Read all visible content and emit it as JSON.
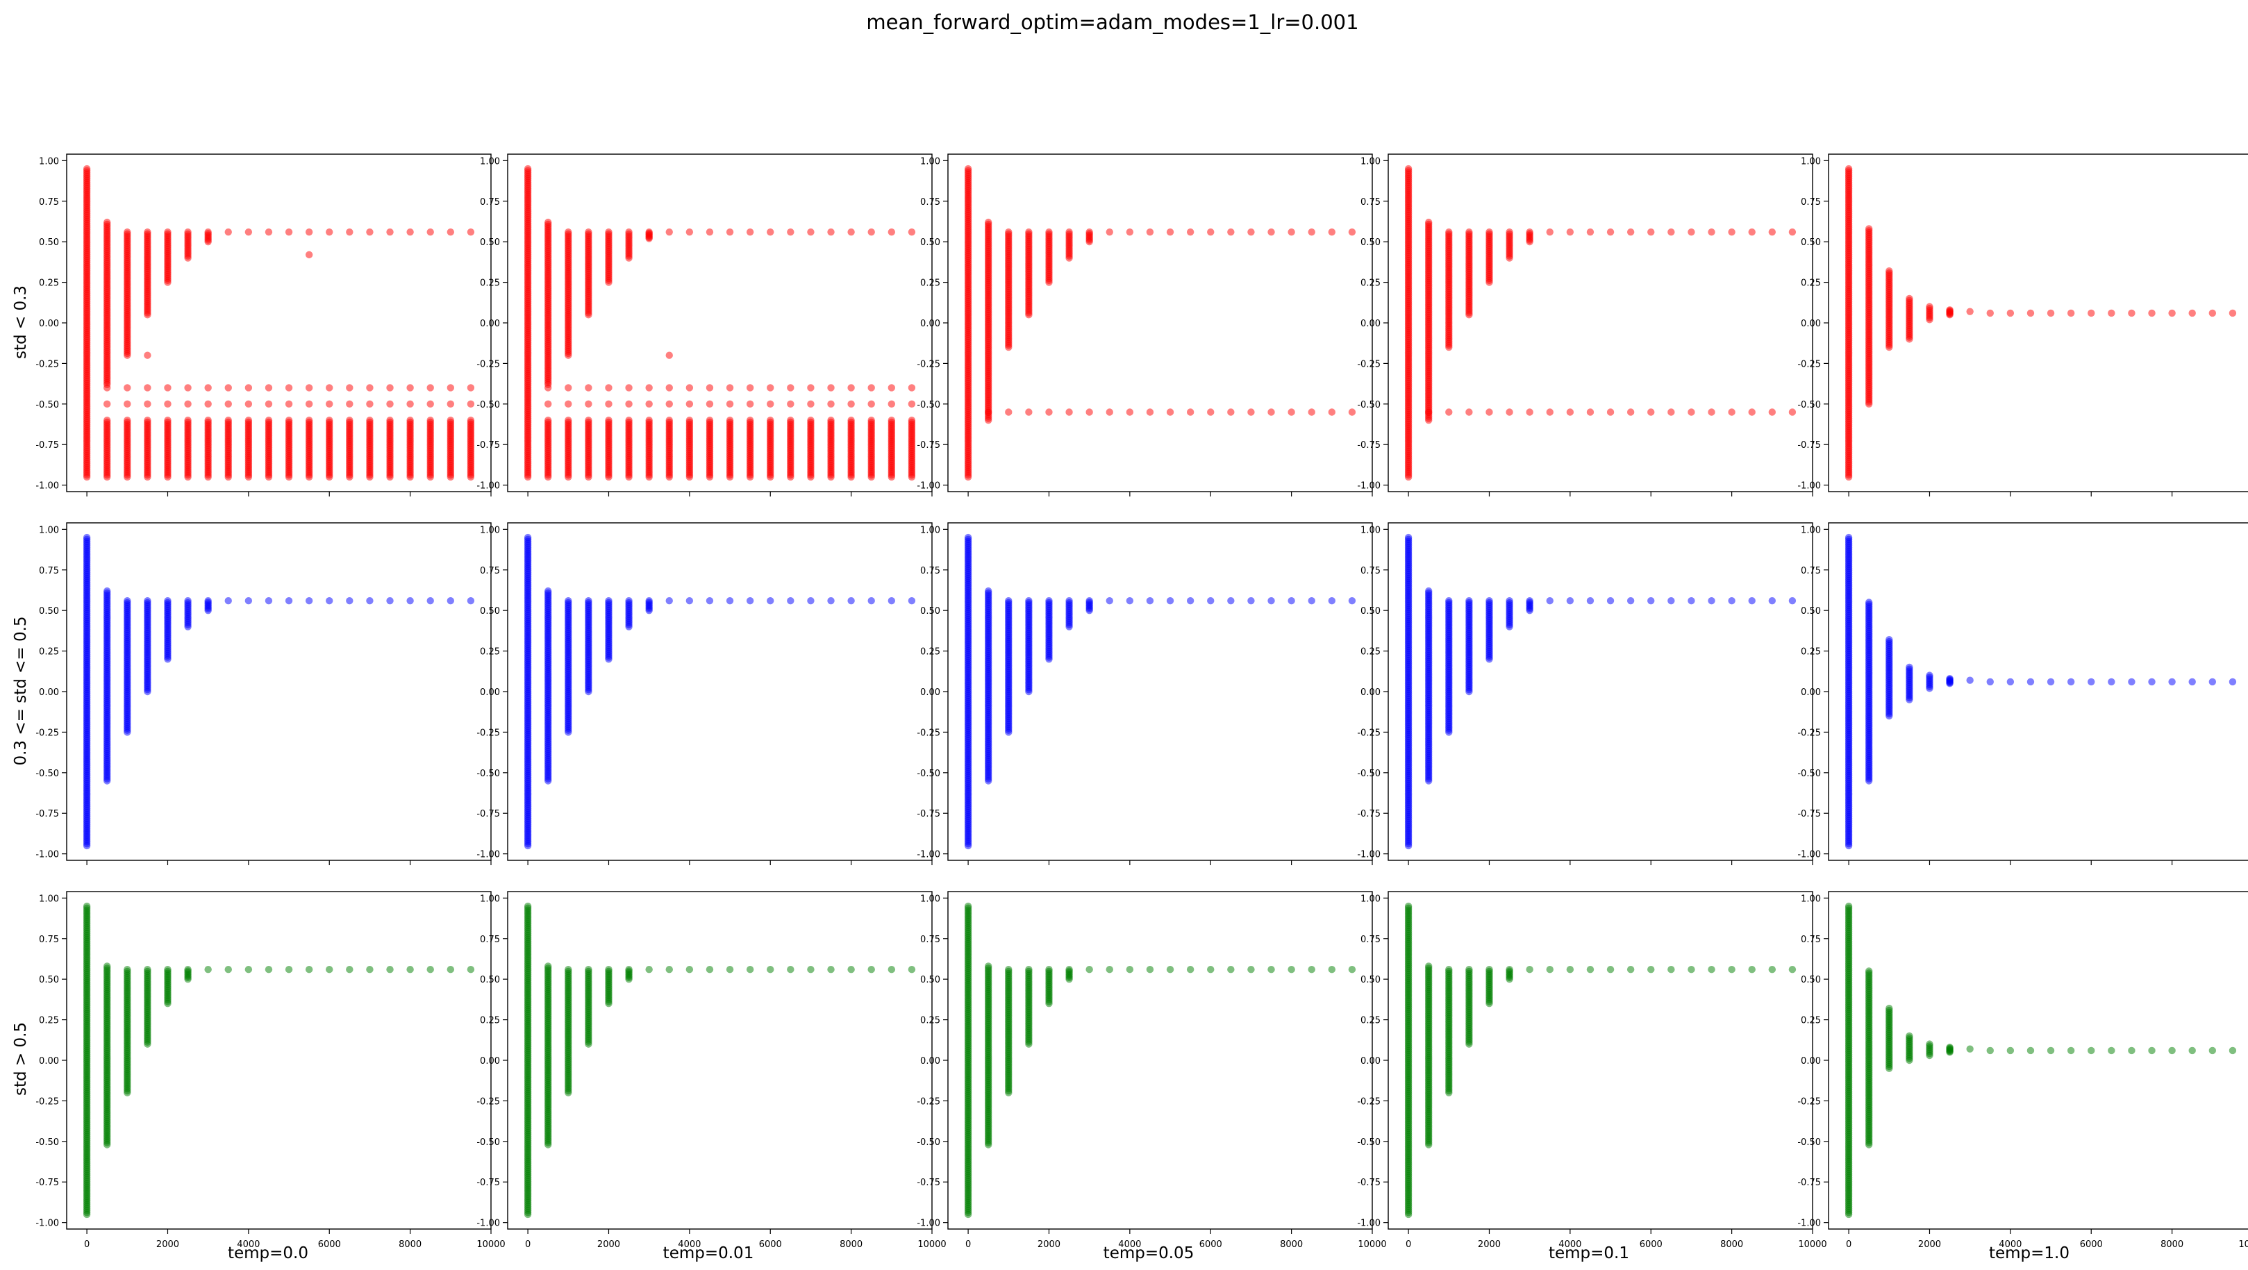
{
  "figure": {
    "title": "mean_forward_optim=adam_modes=1_lr=0.001",
    "row_labels": [
      "std < 0.3",
      "0.3 <= std <= 0.5",
      "std > 0.5"
    ],
    "col_labels": [
      "temp=0.0",
      "temp=0.01",
      "temp=0.05",
      "temp=0.1",
      "temp=1.0"
    ],
    "row_colors": [
      "#ff0000",
      "#0000ff",
      "#008000"
    ],
    "point_alpha": 0.5
  },
  "chart_data": {
    "type": "scatter",
    "layout": "grid 3 rows x 5 columns, shared x axis",
    "xlim": [
      -500,
      10000
    ],
    "ylim": [
      -1.04,
      1.04
    ],
    "x_ticks": [
      0,
      2000,
      4000,
      6000,
      8000,
      10000
    ],
    "x_tick_labels": [
      "0",
      "2000",
      "4000",
      "6000",
      "8000",
      "10000"
    ],
    "y_ticks": [
      1.0,
      0.75,
      0.5,
      0.25,
      0.0,
      -0.25,
      -0.5,
      -0.75,
      -1.0
    ],
    "y_tick_labels": [
      "1.00",
      "0.75",
      "0.50",
      "0.25",
      "0.00",
      "-0.25",
      "-0.50",
      "-0.75",
      "-1.00"
    ],
    "grid": false,
    "legend": "none",
    "x_steps": [
      0,
      500,
      1000,
      1500,
      2000,
      2500,
      3000,
      3500,
      4000,
      4500,
      5000,
      5500,
      6000,
      6500,
      7000,
      7500,
      8000,
      8500,
      9000,
      9500
    ],
    "panels": [
      {
        "row": 0,
        "col": 0,
        "upper": [
          [
            -0.95,
            0.95
          ],
          [
            -0.38,
            0.62
          ],
          [
            -0.2,
            0.56
          ],
          [
            0.05,
            0.56
          ],
          [
            0.25,
            0.56
          ],
          [
            0.4,
            0.56
          ],
          [
            0.5,
            0.56
          ],
          [
            0.55,
            0.56
          ]
        ],
        "lower_start": 1,
        "lower": [
          -0.95,
          -0.4
        ],
        "lower_mid": -0.6,
        "extra": [
          [
            1500,
            -0.2
          ],
          [
            5500,
            0.42
          ]
        ]
      },
      {
        "row": 0,
        "col": 1,
        "upper": [
          [
            -0.95,
            0.95
          ],
          [
            -0.38,
            0.62
          ],
          [
            -0.2,
            0.56
          ],
          [
            0.05,
            0.56
          ],
          [
            0.25,
            0.56
          ],
          [
            0.4,
            0.56
          ],
          [
            0.52,
            0.56
          ],
          [
            0.55,
            0.56
          ]
        ],
        "lower_start": 1,
        "lower": [
          -0.95,
          -0.4
        ],
        "lower_mid": -0.6,
        "extra": [
          [
            3500,
            -0.2
          ]
        ]
      },
      {
        "row": 0,
        "col": 2,
        "upper": [
          [
            -0.95,
            0.95
          ],
          [
            -0.6,
            0.62
          ],
          [
            -0.15,
            0.56
          ],
          [
            0.05,
            0.56
          ],
          [
            0.25,
            0.56
          ],
          [
            0.4,
            0.56
          ],
          [
            0.5,
            0.56
          ],
          [
            0.55,
            0.56
          ]
        ],
        "lower_start": 1,
        "lower": [
          -0.55,
          -0.55
        ],
        "lower_mid": -0.55
      },
      {
        "row": 0,
        "col": 3,
        "upper": [
          [
            -0.95,
            0.95
          ],
          [
            -0.6,
            0.62
          ],
          [
            -0.15,
            0.56
          ],
          [
            0.05,
            0.56
          ],
          [
            0.25,
            0.56
          ],
          [
            0.4,
            0.56
          ],
          [
            0.5,
            0.56
          ],
          [
            0.55,
            0.56
          ]
        ],
        "lower_start": 1,
        "lower": [
          -0.55,
          -0.55
        ],
        "lower_mid": -0.55
      },
      {
        "row": 0,
        "col": 4,
        "upper": [
          [
            -0.95,
            0.95
          ],
          [
            -0.5,
            0.58
          ],
          [
            -0.15,
            0.32
          ],
          [
            -0.1,
            0.15
          ],
          [
            0.02,
            0.1
          ],
          [
            0.05,
            0.08
          ],
          [
            0.06,
            0.07
          ],
          [
            0.06,
            0.06
          ]
        ]
      },
      {
        "row": 1,
        "col": 0,
        "upper": [
          [
            -0.95,
            0.95
          ],
          [
            -0.55,
            0.62
          ],
          [
            -0.25,
            0.56
          ],
          [
            0.0,
            0.56
          ],
          [
            0.2,
            0.56
          ],
          [
            0.4,
            0.56
          ],
          [
            0.5,
            0.56
          ],
          [
            0.55,
            0.56
          ]
        ]
      },
      {
        "row": 1,
        "col": 1,
        "upper": [
          [
            -0.95,
            0.95
          ],
          [
            -0.55,
            0.62
          ],
          [
            -0.25,
            0.56
          ],
          [
            0.0,
            0.56
          ],
          [
            0.2,
            0.56
          ],
          [
            0.4,
            0.56
          ],
          [
            0.5,
            0.56
          ],
          [
            0.55,
            0.56
          ]
        ]
      },
      {
        "row": 1,
        "col": 2,
        "upper": [
          [
            -0.95,
            0.95
          ],
          [
            -0.55,
            0.62
          ],
          [
            -0.25,
            0.56
          ],
          [
            0.0,
            0.56
          ],
          [
            0.2,
            0.56
          ],
          [
            0.4,
            0.56
          ],
          [
            0.5,
            0.56
          ],
          [
            0.55,
            0.56
          ]
        ]
      },
      {
        "row": 1,
        "col": 3,
        "upper": [
          [
            -0.95,
            0.95
          ],
          [
            -0.55,
            0.62
          ],
          [
            -0.25,
            0.56
          ],
          [
            0.0,
            0.56
          ],
          [
            0.2,
            0.56
          ],
          [
            0.4,
            0.56
          ],
          [
            0.5,
            0.56
          ],
          [
            0.55,
            0.56
          ]
        ]
      },
      {
        "row": 1,
        "col": 4,
        "upper": [
          [
            -0.95,
            0.95
          ],
          [
            -0.55,
            0.55
          ],
          [
            -0.15,
            0.32
          ],
          [
            -0.05,
            0.15
          ],
          [
            0.02,
            0.1
          ],
          [
            0.05,
            0.08
          ],
          [
            0.06,
            0.07
          ],
          [
            0.06,
            0.06
          ]
        ]
      },
      {
        "row": 2,
        "col": 0,
        "upper": [
          [
            -0.95,
            0.95
          ],
          [
            -0.52,
            0.58
          ],
          [
            -0.2,
            0.56
          ],
          [
            0.1,
            0.56
          ],
          [
            0.35,
            0.56
          ],
          [
            0.5,
            0.56
          ],
          [
            0.55,
            0.56
          ],
          [
            0.55,
            0.56
          ]
        ]
      },
      {
        "row": 2,
        "col": 1,
        "upper": [
          [
            -0.95,
            0.95
          ],
          [
            -0.52,
            0.58
          ],
          [
            -0.2,
            0.56
          ],
          [
            0.1,
            0.56
          ],
          [
            0.35,
            0.56
          ],
          [
            0.5,
            0.56
          ],
          [
            0.55,
            0.56
          ],
          [
            0.55,
            0.56
          ]
        ]
      },
      {
        "row": 2,
        "col": 2,
        "upper": [
          [
            -0.95,
            0.95
          ],
          [
            -0.52,
            0.58
          ],
          [
            -0.2,
            0.56
          ],
          [
            0.1,
            0.56
          ],
          [
            0.35,
            0.56
          ],
          [
            0.5,
            0.56
          ],
          [
            0.55,
            0.56
          ],
          [
            0.55,
            0.56
          ]
        ]
      },
      {
        "row": 2,
        "col": 3,
        "upper": [
          [
            -0.95,
            0.95
          ],
          [
            -0.52,
            0.58
          ],
          [
            -0.2,
            0.56
          ],
          [
            0.1,
            0.56
          ],
          [
            0.35,
            0.56
          ],
          [
            0.5,
            0.56
          ],
          [
            0.55,
            0.56
          ],
          [
            0.55,
            0.56
          ]
        ]
      },
      {
        "row": 2,
        "col": 4,
        "upper": [
          [
            -0.95,
            0.95
          ],
          [
            -0.52,
            0.55
          ],
          [
            -0.05,
            0.32
          ],
          [
            0.0,
            0.15
          ],
          [
            0.03,
            0.1
          ],
          [
            0.05,
            0.08
          ],
          [
            0.06,
            0.07
          ],
          [
            0.06,
            0.06
          ]
        ]
      }
    ]
  }
}
